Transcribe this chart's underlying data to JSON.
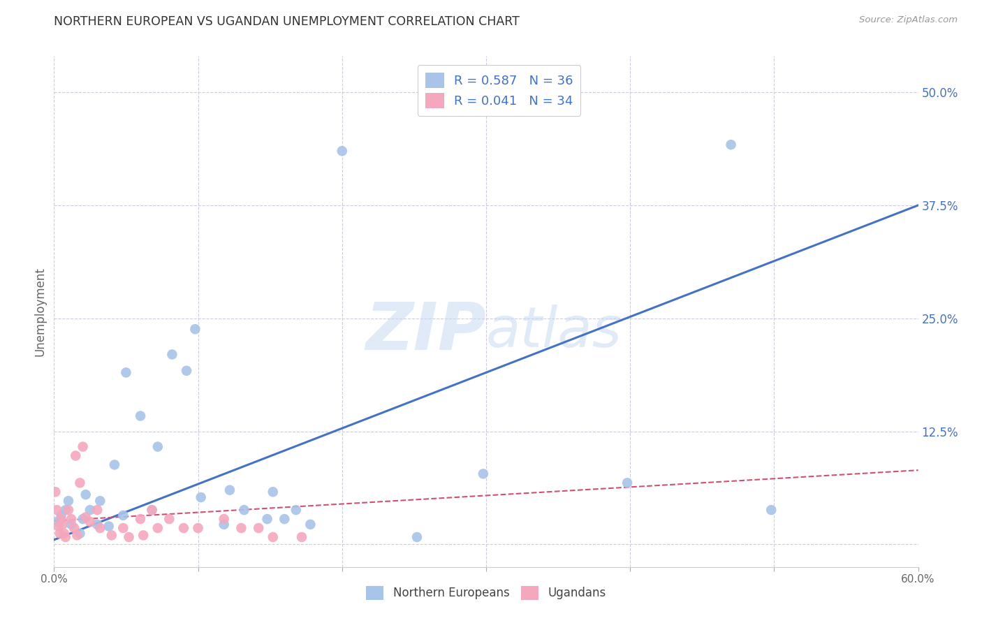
{
  "title": "NORTHERN EUROPEAN VS UGANDAN UNEMPLOYMENT CORRELATION CHART",
  "source": "Source: ZipAtlas.com",
  "ylabel": "Unemployment",
  "xlim": [
    0.0,
    0.6
  ],
  "ylim": [
    -0.025,
    0.54
  ],
  "xticks": [
    0.0,
    0.1,
    0.2,
    0.3,
    0.4,
    0.5,
    0.6
  ],
  "xtick_labels": [
    "0.0%",
    "",
    "",
    "",
    "",
    "",
    "60.0%"
  ],
  "ytick_values": [
    0.0,
    0.125,
    0.25,
    0.375,
    0.5
  ],
  "ytick_labels": [
    "",
    "12.5%",
    "25.0%",
    "37.5%",
    "50.0%"
  ],
  "blue_color": "#a8c4e8",
  "pink_color": "#f4a8be",
  "blue_line_color": "#4472c4",
  "pink_line_color": "#d05070",
  "legend_R_blue": "0.587",
  "legend_N_blue": "36",
  "legend_R_pink": "0.041",
  "legend_N_pink": "34",
  "blue_dots_x": [
    0.002,
    0.005,
    0.008,
    0.01,
    0.012,
    0.018,
    0.02,
    0.022,
    0.025,
    0.03,
    0.032,
    0.038,
    0.042,
    0.048,
    0.05,
    0.06,
    0.068,
    0.072,
    0.082,
    0.092,
    0.098,
    0.102,
    0.118,
    0.122,
    0.132,
    0.148,
    0.152,
    0.16,
    0.168,
    0.178,
    0.2,
    0.252,
    0.298,
    0.398,
    0.47,
    0.498
  ],
  "blue_dots_y": [
    0.025,
    0.032,
    0.038,
    0.048,
    0.022,
    0.012,
    0.028,
    0.055,
    0.038,
    0.022,
    0.048,
    0.02,
    0.088,
    0.032,
    0.19,
    0.142,
    0.038,
    0.108,
    0.21,
    0.192,
    0.238,
    0.052,
    0.022,
    0.06,
    0.038,
    0.028,
    0.058,
    0.028,
    0.038,
    0.022,
    0.435,
    0.008,
    0.078,
    0.068,
    0.442,
    0.038
  ],
  "pink_dots_x": [
    0.001,
    0.002,
    0.003,
    0.004,
    0.005,
    0.006,
    0.007,
    0.008,
    0.01,
    0.012,
    0.014,
    0.016,
    0.015,
    0.018,
    0.02,
    0.022,
    0.025,
    0.03,
    0.032,
    0.04,
    0.048,
    0.052,
    0.06,
    0.062,
    0.068,
    0.072,
    0.08,
    0.09,
    0.1,
    0.118,
    0.13,
    0.142,
    0.152,
    0.172
  ],
  "pink_dots_y": [
    0.058,
    0.038,
    0.02,
    0.012,
    0.028,
    0.022,
    0.012,
    0.008,
    0.038,
    0.028,
    0.018,
    0.01,
    0.098,
    0.068,
    0.108,
    0.03,
    0.025,
    0.038,
    0.018,
    0.01,
    0.018,
    0.008,
    0.028,
    0.01,
    0.038,
    0.018,
    0.028,
    0.018,
    0.018,
    0.028,
    0.018,
    0.018,
    0.008,
    0.008
  ],
  "blue_line_x": [
    0.0,
    0.6
  ],
  "blue_line_y": [
    0.005,
    0.375
  ],
  "pink_line_x": [
    0.0,
    0.6
  ],
  "pink_line_y": [
    0.026,
    0.082
  ],
  "background_color": "#ffffff",
  "grid_color": "#ccccdd"
}
